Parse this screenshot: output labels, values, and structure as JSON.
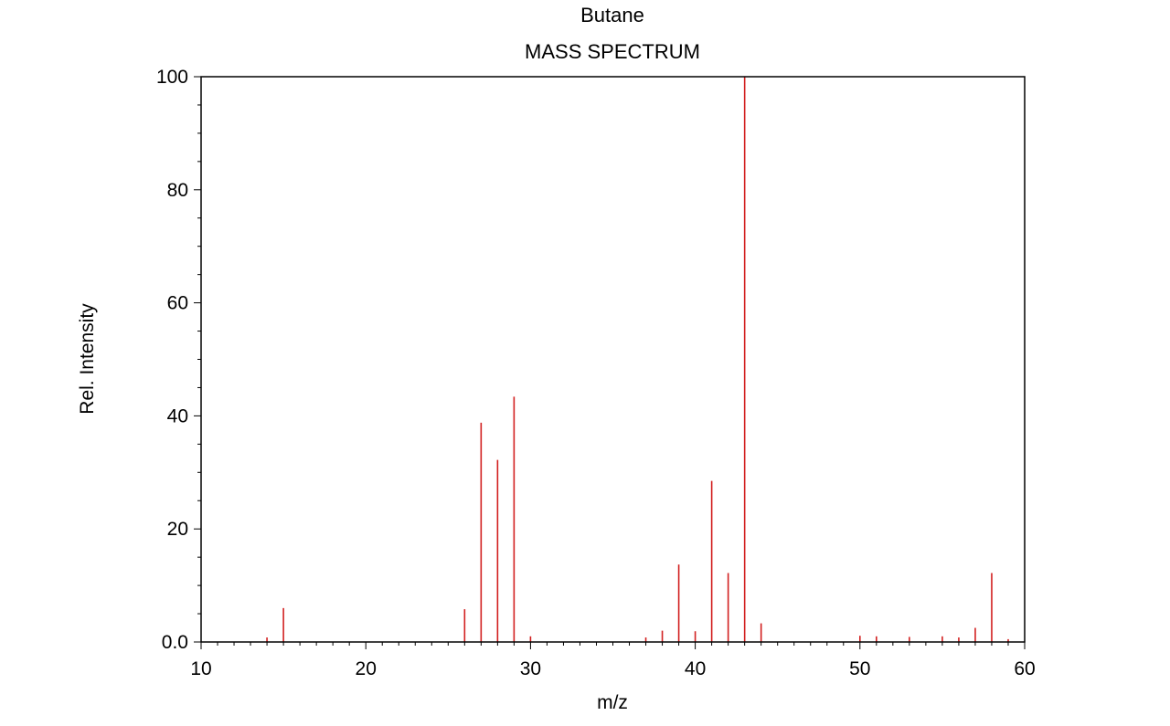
{
  "chart_data": {
    "type": "bar",
    "title": "Butane",
    "subtitle": "MASS SPECTRUM",
    "xlabel": "m/z",
    "ylabel": "Rel. Intensity",
    "xlim": [
      10,
      60
    ],
    "ylim": [
      0,
      100
    ],
    "x_ticks": [
      "10",
      "20",
      "30",
      "40",
      "50",
      "60"
    ],
    "y_ticks": [
      "0.0",
      "20",
      "40",
      "60",
      "80",
      "100"
    ],
    "grid": false,
    "bar_color": "#d22020",
    "peaks": [
      {
        "mz": 14,
        "intensity": 0.8
      },
      {
        "mz": 15,
        "intensity": 6.0
      },
      {
        "mz": 26,
        "intensity": 5.8
      },
      {
        "mz": 27,
        "intensity": 38.8
      },
      {
        "mz": 28,
        "intensity": 32.2
      },
      {
        "mz": 29,
        "intensity": 43.4
      },
      {
        "mz": 30,
        "intensity": 1.0
      },
      {
        "mz": 37,
        "intensity": 0.8
      },
      {
        "mz": 38,
        "intensity": 2.0
      },
      {
        "mz": 39,
        "intensity": 13.7
      },
      {
        "mz": 40,
        "intensity": 1.9
      },
      {
        "mz": 41,
        "intensity": 28.5
      },
      {
        "mz": 42,
        "intensity": 12.2
      },
      {
        "mz": 43,
        "intensity": 100
      },
      {
        "mz": 44,
        "intensity": 3.3
      },
      {
        "mz": 50,
        "intensity": 1.1
      },
      {
        "mz": 51,
        "intensity": 1.0
      },
      {
        "mz": 53,
        "intensity": 0.9
      },
      {
        "mz": 55,
        "intensity": 1.0
      },
      {
        "mz": 56,
        "intensity": 0.8
      },
      {
        "mz": 57,
        "intensity": 2.5
      },
      {
        "mz": 58,
        "intensity": 12.2
      },
      {
        "mz": 59,
        "intensity": 0.5
      }
    ]
  }
}
